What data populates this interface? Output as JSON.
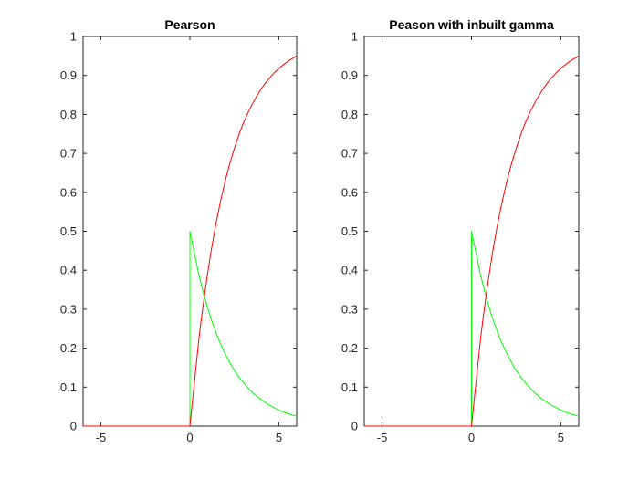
{
  "chart_data": [
    {
      "type": "line",
      "title": "Pearson",
      "xlim": [
        -6,
        6
      ],
      "ylim": [
        0,
        1
      ],
      "xticks": [
        -5,
        0,
        5
      ],
      "yticks": [
        0,
        0.1,
        0.2,
        0.3,
        0.4,
        0.5,
        0.6,
        0.7,
        0.8,
        0.9,
        1
      ],
      "grid": false,
      "series": [
        {
          "color": "#00ff00",
          "x": [
            -6,
            0,
            0,
            0.5,
            1,
            1.5,
            2,
            2.5,
            3,
            3.5,
            4,
            4.5,
            5,
            5.5,
            6
          ],
          "y": [
            0,
            0,
            0.5,
            0.389,
            0.303,
            0.236,
            0.184,
            0.143,
            0.112,
            0.087,
            0.068,
            0.053,
            0.041,
            0.032,
            0.025
          ]
        },
        {
          "color": "#ff0000",
          "x": [
            -6,
            0,
            0.5,
            1,
            1.5,
            2,
            2.5,
            3,
            3.5,
            4,
            4.5,
            5,
            5.5,
            6
          ],
          "y": [
            0,
            0,
            0.221,
            0.393,
            0.528,
            0.632,
            0.713,
            0.777,
            0.826,
            0.865,
            0.895,
            0.918,
            0.936,
            0.95
          ]
        }
      ]
    },
    {
      "type": "line",
      "title": "Peason with inbuilt gamma",
      "xlim": [
        -6,
        6
      ],
      "ylim": [
        0,
        1
      ],
      "xticks": [
        -5,
        0,
        5
      ],
      "yticks": [
        0,
        0.1,
        0.2,
        0.3,
        0.4,
        0.5,
        0.6,
        0.7,
        0.8,
        0.9,
        1
      ],
      "grid": false,
      "series": [
        {
          "color": "#00ff00",
          "x": [
            -6,
            0,
            0,
            0.5,
            1,
            1.5,
            2,
            2.5,
            3,
            3.5,
            4,
            4.5,
            5,
            5.5,
            6
          ],
          "y": [
            0,
            0,
            0.5,
            0.389,
            0.303,
            0.236,
            0.184,
            0.143,
            0.112,
            0.087,
            0.068,
            0.053,
            0.041,
            0.032,
            0.025
          ]
        },
        {
          "color": "#ff0000",
          "x": [
            -6,
            0,
            0.5,
            1,
            1.5,
            2,
            2.5,
            3,
            3.5,
            4,
            4.5,
            5,
            5.5,
            6
          ],
          "y": [
            0,
            0,
            0.221,
            0.393,
            0.528,
            0.632,
            0.713,
            0.777,
            0.826,
            0.865,
            0.895,
            0.918,
            0.936,
            0.95
          ]
        }
      ]
    }
  ]
}
